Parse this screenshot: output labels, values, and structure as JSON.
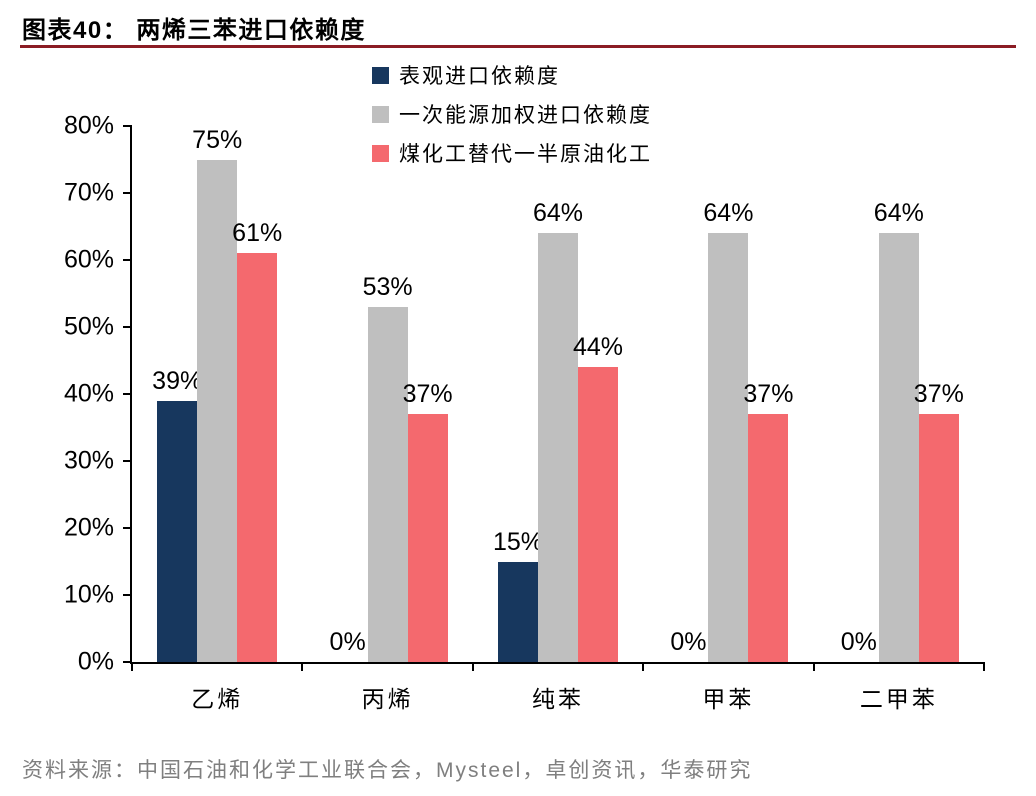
{
  "header": {
    "title": "图表40： 两烯三苯进口依赖度"
  },
  "chart_data": {
    "type": "bar",
    "title": "两烯三苯进口依赖度",
    "categories": [
      "乙烯",
      "丙烯",
      "纯苯",
      "甲苯",
      "二甲苯"
    ],
    "series": [
      {
        "name": "表观进口依赖度",
        "color": "#17375E",
        "values": [
          39,
          0,
          15,
          0,
          0
        ]
      },
      {
        "name": "一次能源加权进口依赖度",
        "color": "#BFBFBF",
        "values": [
          75,
          53,
          64,
          64,
          64
        ]
      },
      {
        "name": "煤化工替代一半原油化工",
        "color": "#F4696E",
        "values": [
          61,
          37,
          44,
          37,
          37
        ]
      }
    ],
    "ylim": [
      0,
      80
    ],
    "yticks": [
      "0%",
      "10%",
      "20%",
      "30%",
      "40%",
      "50%",
      "60%",
      "70%",
      "80%"
    ],
    "value_suffix": "%",
    "legend_position": "top",
    "grid": false,
    "axis_color": "#000000",
    "title_rule_color": "#8B1C24"
  },
  "footer": {
    "source": "资料来源：中国石油和化学工业联合会，Mysteel，卓创资讯，华泰研究"
  }
}
